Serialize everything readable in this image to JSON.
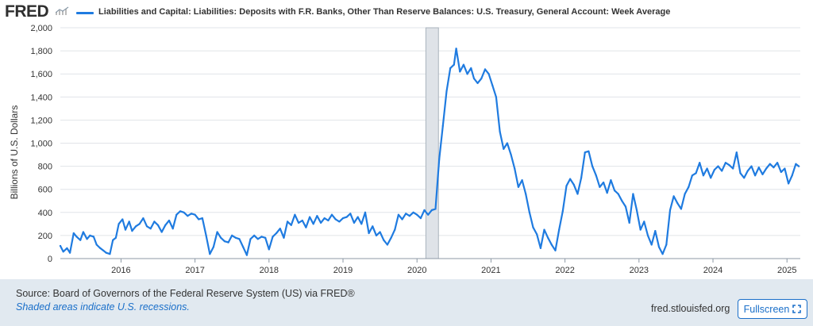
{
  "header": {
    "logo_text": "FRED",
    "logo_icon": "chart-trend-icon",
    "legend_label": "Liabilities and Capital: Liabilities: Deposits with F.R. Banks, Other Than Reserve Balances: U.S. Treasury, General Account: Week Average",
    "line_color": "#1f7be0"
  },
  "footer": {
    "source": "Source: Board of Governors of the Federal Reserve System (US) via FRED®",
    "shaded_note": "Shaded areas indicate U.S. recessions.",
    "url": "fred.stlouisfed.org",
    "fullscreen_label": "Fullscreen",
    "fullscreen_icon": "expand-icon"
  },
  "chart_data": {
    "type": "line",
    "title": "Liabilities and Capital: Liabilities: Deposits with F.R. Banks, Other Than Reserve Balances: U.S. Treasury, General Account: Week Average",
    "xlabel": "",
    "ylabel": "Billions of U.S. Dollars",
    "xlim": [
      2015.18,
      2025.18
    ],
    "ylim": [
      0,
      2000
    ],
    "yticks": [
      0,
      200,
      400,
      600,
      800,
      1000,
      1200,
      1400,
      1600,
      1800,
      2000
    ],
    "ytick_labels": [
      "0",
      "200",
      "400",
      "600",
      "800",
      "1,000",
      "1,200",
      "1,400",
      "1,600",
      "1,800",
      "2,000"
    ],
    "xticks": [
      2016,
      2017,
      2018,
      2019,
      2020,
      2021,
      2022,
      2023,
      2024,
      2025
    ],
    "xtick_labels": [
      "2016",
      "2017",
      "2018",
      "2019",
      "2020",
      "2021",
      "2022",
      "2023",
      "2024",
      "2025"
    ],
    "grid": true,
    "recession": [
      2020.12,
      2020.29
    ],
    "series": [
      {
        "name": "Liabilities and Capital: Liabilities: Deposits with F.R. Banks, Other Than Reserve Balances: U.S. Treasury, General Account: Week Average",
        "points": [
          [
            2015.18,
            110
          ],
          [
            2015.22,
            60
          ],
          [
            2015.27,
            90
          ],
          [
            2015.31,
            50
          ],
          [
            2015.36,
            220
          ],
          [
            2015.4,
            190
          ],
          [
            2015.45,
            160
          ],
          [
            2015.49,
            230
          ],
          [
            2015.54,
            170
          ],
          [
            2015.58,
            200
          ],
          [
            2015.63,
            190
          ],
          [
            2015.67,
            120
          ],
          [
            2015.72,
            90
          ],
          [
            2015.76,
            70
          ],
          [
            2015.8,
            50
          ],
          [
            2015.85,
            40
          ],
          [
            2015.89,
            160
          ],
          [
            2015.93,
            180
          ],
          [
            2015.97,
            300
          ],
          [
            2016.02,
            340
          ],
          [
            2016.06,
            250
          ],
          [
            2016.11,
            320
          ],
          [
            2016.15,
            240
          ],
          [
            2016.2,
            280
          ],
          [
            2016.25,
            300
          ],
          [
            2016.3,
            350
          ],
          [
            2016.35,
            280
          ],
          [
            2016.4,
            260
          ],
          [
            2016.45,
            320
          ],
          [
            2016.5,
            290
          ],
          [
            2016.55,
            230
          ],
          [
            2016.6,
            290
          ],
          [
            2016.65,
            330
          ],
          [
            2016.7,
            260
          ],
          [
            2016.75,
            380
          ],
          [
            2016.8,
            410
          ],
          [
            2016.85,
            400
          ],
          [
            2016.9,
            370
          ],
          [
            2016.95,
            390
          ],
          [
            2017.0,
            380
          ],
          [
            2017.05,
            340
          ],
          [
            2017.1,
            350
          ],
          [
            2017.15,
            200
          ],
          [
            2017.2,
            40
          ],
          [
            2017.25,
            100
          ],
          [
            2017.3,
            230
          ],
          [
            2017.35,
            180
          ],
          [
            2017.4,
            150
          ],
          [
            2017.45,
            140
          ],
          [
            2017.5,
            200
          ],
          [
            2017.55,
            180
          ],
          [
            2017.6,
            170
          ],
          [
            2017.65,
            100
          ],
          [
            2017.7,
            30
          ],
          [
            2017.75,
            170
          ],
          [
            2017.8,
            200
          ],
          [
            2017.85,
            170
          ],
          [
            2017.9,
            190
          ],
          [
            2017.95,
            180
          ],
          [
            2018.0,
            80
          ],
          [
            2018.05,
            190
          ],
          [
            2018.1,
            220
          ],
          [
            2018.15,
            260
          ],
          [
            2018.2,
            180
          ],
          [
            2018.25,
            320
          ],
          [
            2018.3,
            290
          ],
          [
            2018.35,
            380
          ],
          [
            2018.4,
            310
          ],
          [
            2018.45,
            330
          ],
          [
            2018.5,
            270
          ],
          [
            2018.55,
            360
          ],
          [
            2018.6,
            300
          ],
          [
            2018.65,
            370
          ],
          [
            2018.7,
            310
          ],
          [
            2018.75,
            350
          ],
          [
            2018.8,
            330
          ],
          [
            2018.85,
            380
          ],
          [
            2018.9,
            340
          ],
          [
            2018.95,
            320
          ],
          [
            2019.0,
            350
          ],
          [
            2019.05,
            360
          ],
          [
            2019.1,
            390
          ],
          [
            2019.15,
            310
          ],
          [
            2019.2,
            360
          ],
          [
            2019.25,
            300
          ],
          [
            2019.3,
            400
          ],
          [
            2019.35,
            220
          ],
          [
            2019.4,
            280
          ],
          [
            2019.45,
            200
          ],
          [
            2019.5,
            230
          ],
          [
            2019.55,
            160
          ],
          [
            2019.6,
            120
          ],
          [
            2019.65,
            180
          ],
          [
            2019.7,
            250
          ],
          [
            2019.75,
            380
          ],
          [
            2019.8,
            340
          ],
          [
            2019.85,
            390
          ],
          [
            2019.9,
            370
          ],
          [
            2019.95,
            400
          ],
          [
            2020.0,
            380
          ],
          [
            2020.05,
            350
          ],
          [
            2020.1,
            420
          ],
          [
            2020.15,
            380
          ],
          [
            2020.2,
            420
          ],
          [
            2020.25,
            430
          ],
          [
            2020.3,
            860
          ],
          [
            2020.35,
            1150
          ],
          [
            2020.4,
            1450
          ],
          [
            2020.45,
            1650
          ],
          [
            2020.5,
            1680
          ],
          [
            2020.53,
            1820
          ],
          [
            2020.58,
            1620
          ],
          [
            2020.63,
            1680
          ],
          [
            2020.68,
            1600
          ],
          [
            2020.73,
            1650
          ],
          [
            2020.77,
            1560
          ],
          [
            2020.82,
            1520
          ],
          [
            2020.87,
            1560
          ],
          [
            2020.92,
            1640
          ],
          [
            2020.97,
            1600
          ],
          [
            2021.02,
            1500
          ],
          [
            2021.07,
            1400
          ],
          [
            2021.12,
            1100
          ],
          [
            2021.17,
            950
          ],
          [
            2021.22,
            1000
          ],
          [
            2021.27,
            900
          ],
          [
            2021.32,
            780
          ],
          [
            2021.37,
            620
          ],
          [
            2021.42,
            680
          ],
          [
            2021.47,
            560
          ],
          [
            2021.52,
            400
          ],
          [
            2021.57,
            270
          ],
          [
            2021.62,
            210
          ],
          [
            2021.67,
            90
          ],
          [
            2021.72,
            250
          ],
          [
            2021.77,
            180
          ],
          [
            2021.82,
            120
          ],
          [
            2021.87,
            70
          ],
          [
            2021.92,
            250
          ],
          [
            2021.97,
            410
          ],
          [
            2022.02,
            630
          ],
          [
            2022.07,
            690
          ],
          [
            2022.12,
            640
          ],
          [
            2022.17,
            560
          ],
          [
            2022.22,
            700
          ],
          [
            2022.27,
            920
          ],
          [
            2022.32,
            930
          ],
          [
            2022.37,
            800
          ],
          [
            2022.42,
            720
          ],
          [
            2022.47,
            620
          ],
          [
            2022.52,
            660
          ],
          [
            2022.57,
            570
          ],
          [
            2022.62,
            680
          ],
          [
            2022.67,
            590
          ],
          [
            2022.72,
            560
          ],
          [
            2022.77,
            500
          ],
          [
            2022.82,
            450
          ],
          [
            2022.87,
            310
          ],
          [
            2022.92,
            560
          ],
          [
            2022.97,
            420
          ],
          [
            2023.02,
            250
          ],
          [
            2023.07,
            320
          ],
          [
            2023.12,
            200
          ],
          [
            2023.17,
            120
          ],
          [
            2023.22,
            240
          ],
          [
            2023.27,
            100
          ],
          [
            2023.32,
            40
          ],
          [
            2023.37,
            120
          ],
          [
            2023.42,
            420
          ],
          [
            2023.47,
            540
          ],
          [
            2023.52,
            480
          ],
          [
            2023.57,
            430
          ],
          [
            2023.62,
            560
          ],
          [
            2023.67,
            620
          ],
          [
            2023.72,
            720
          ],
          [
            2023.77,
            740
          ],
          [
            2023.82,
            830
          ],
          [
            2023.87,
            720
          ],
          [
            2023.92,
            780
          ],
          [
            2023.97,
            700
          ],
          [
            2024.02,
            770
          ],
          [
            2024.07,
            800
          ],
          [
            2024.12,
            760
          ],
          [
            2024.17,
            830
          ],
          [
            2024.22,
            810
          ],
          [
            2024.27,
            780
          ],
          [
            2024.32,
            920
          ],
          [
            2024.37,
            740
          ],
          [
            2024.42,
            700
          ],
          [
            2024.47,
            760
          ],
          [
            2024.52,
            800
          ],
          [
            2024.57,
            720
          ],
          [
            2024.62,
            790
          ],
          [
            2024.67,
            730
          ],
          [
            2024.72,
            780
          ],
          [
            2024.77,
            820
          ],
          [
            2024.82,
            790
          ],
          [
            2024.87,
            830
          ],
          [
            2024.92,
            750
          ],
          [
            2024.97,
            780
          ],
          [
            2025.02,
            650
          ],
          [
            2025.07,
            720
          ],
          [
            2025.12,
            820
          ],
          [
            2025.16,
            800
          ]
        ]
      }
    ]
  }
}
